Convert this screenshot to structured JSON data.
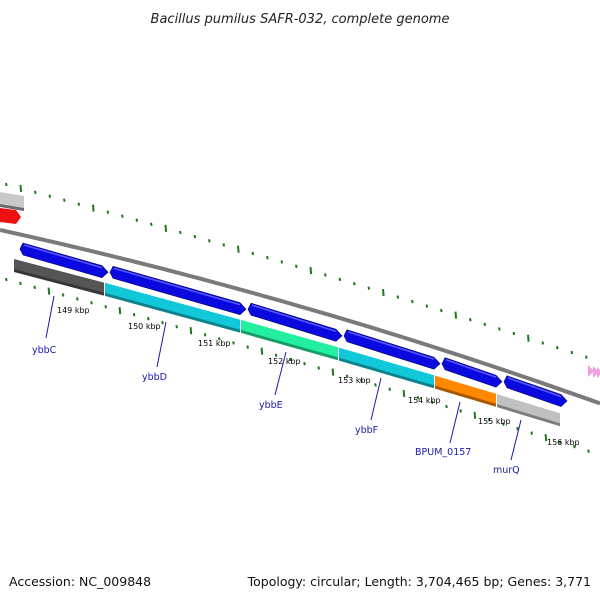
{
  "title": "Bacillus pumilus SAFR-032, complete genome",
  "footer": {
    "accession": "Accession: NC_009848",
    "summary": "Topology: circular; Length: 3,704,465 bp; Genes: 3,771"
  },
  "colors": {
    "backbone": "#7a7a7a",
    "tick": "#1a7a1a",
    "gene_label": "#1a1aaa",
    "kbp_label": "#000000",
    "forward_strand": "#0a0ae0",
    "red_gene": "#ee1111",
    "pink_arrows": "#f0a0e0"
  },
  "kbp_labels": [
    "149 kbp",
    "150 kbp",
    "151 kbp",
    "152 kbp",
    "153 kbp",
    "154 kbp",
    "155 kbp",
    "156 kbp"
  ],
  "forward_genes": [
    {
      "id": "f1",
      "color": "#0a0ae0"
    },
    {
      "id": "f2",
      "color": "#0a0ae0"
    },
    {
      "id": "f3",
      "color": "#0a0ae0"
    },
    {
      "id": "f4",
      "color": "#0a0ae0"
    },
    {
      "id": "f5",
      "color": "#0a0ae0"
    },
    {
      "id": "f6",
      "color": "#0a0ae0"
    }
  ],
  "cog_bars": [
    {
      "gene": "ybbC",
      "color": "#555555"
    },
    {
      "gene": "ybbD",
      "color": "#11c8d8"
    },
    {
      "gene": "ybbE",
      "color": "#22f0a0"
    },
    {
      "gene": "ybbF",
      "color": "#11c8d8"
    },
    {
      "gene": "BPUM_0157",
      "color": "#ff8800"
    },
    {
      "gene": "murQ",
      "color": "#c0c0c0"
    }
  ],
  "gene_labels": [
    "ybbC",
    "ybbD",
    "ybbE",
    "ybbF",
    "BPUM_0157",
    "murQ"
  ]
}
